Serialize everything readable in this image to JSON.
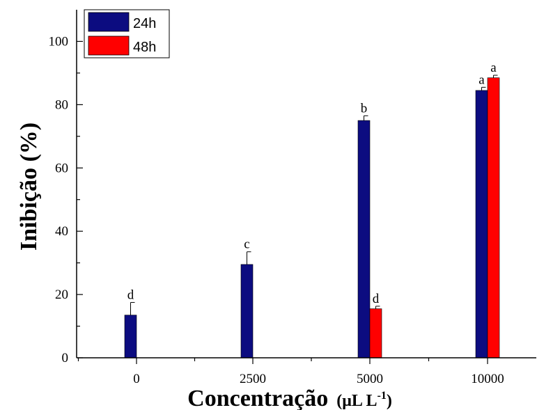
{
  "chart_data": {
    "type": "bar",
    "categories": [
      "0",
      "2500",
      "5000",
      "10000"
    ],
    "series": [
      {
        "name": "24h",
        "color": "#0c0c80",
        "values": [
          13.5,
          29.5,
          75.0,
          84.5
        ],
        "errors": [
          4.0,
          4.0,
          1.5,
          1.0
        ],
        "labels": [
          "d",
          "c",
          "b",
          "a"
        ]
      },
      {
        "name": "48h",
        "color": "#ff0000",
        "values": [
          null,
          null,
          15.5,
          88.5
        ],
        "errors": [
          null,
          null,
          0.8,
          0.8
        ],
        "labels": [
          "",
          "",
          "d",
          "a"
        ]
      }
    ],
    "xlabel": "Concentração",
    "xlabel_unit": "(μL L-1)",
    "ylabel": "Inibição (%)",
    "ylim": [
      0,
      110
    ],
    "yticks": [
      "0",
      "20",
      "40",
      "60",
      "80",
      "100"
    ],
    "legend_position": "top-left",
    "grid": false
  }
}
